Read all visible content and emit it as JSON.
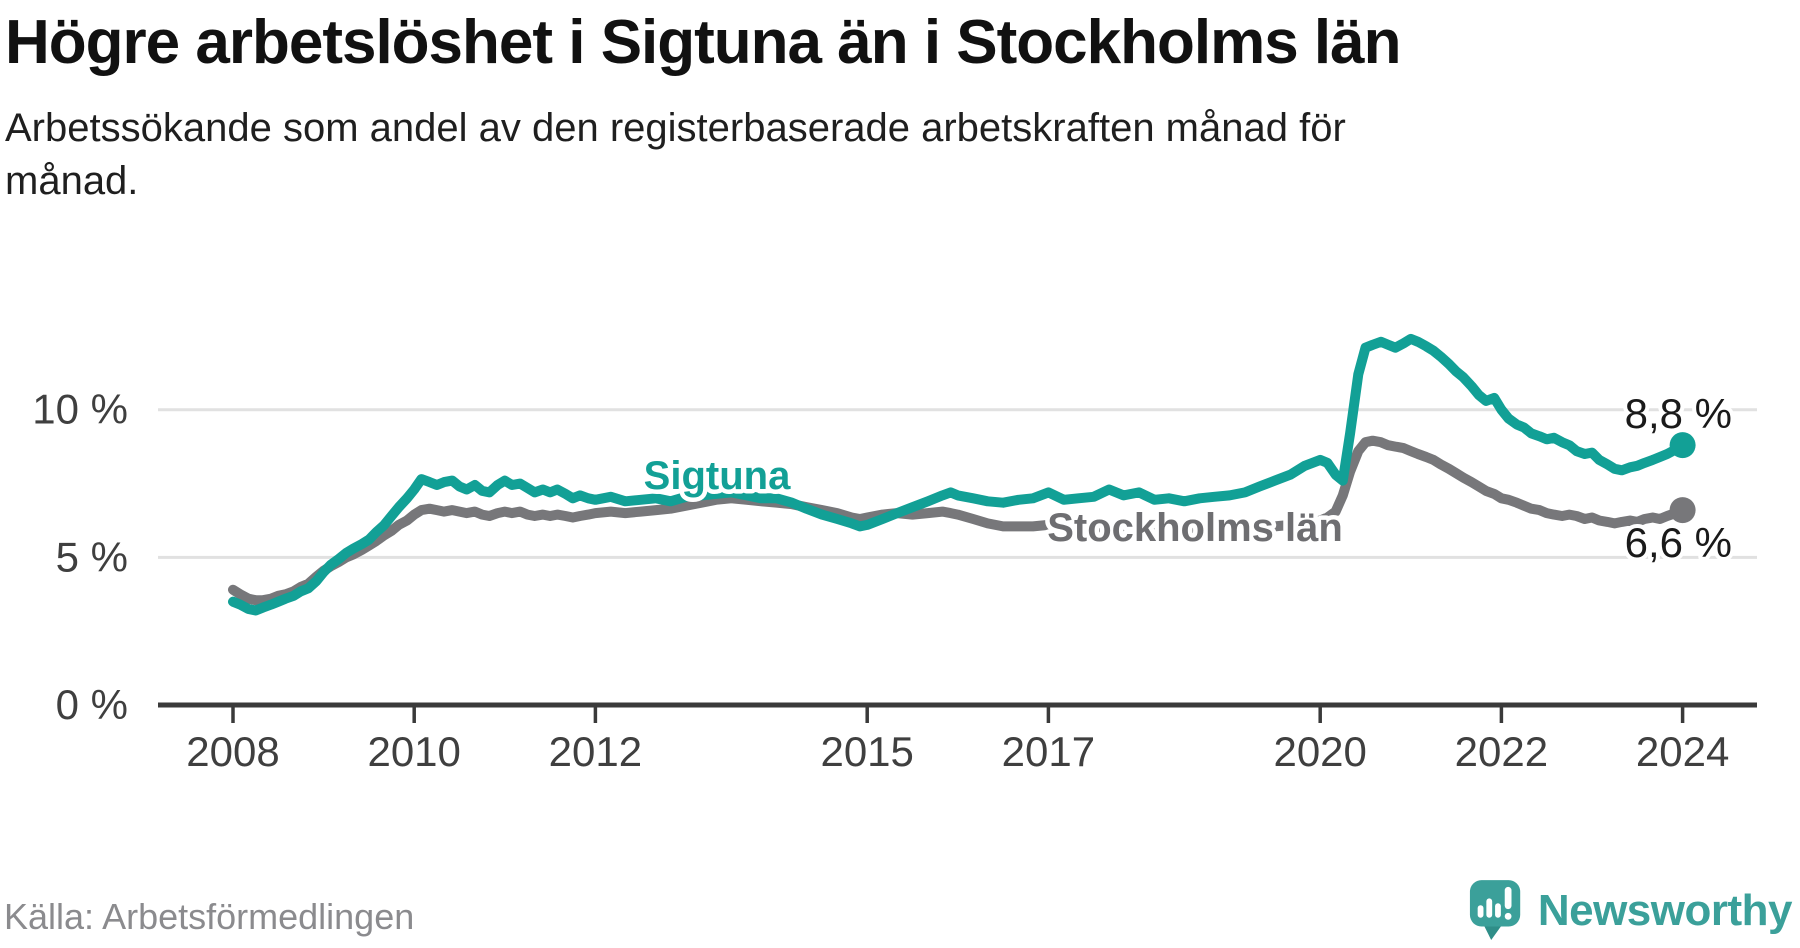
{
  "header": {
    "title": "Högre arbetslöshet i Sigtuna än i Stockholms län",
    "subtitle": "Arbetssökande som andel av den registerbaserade arbetskraften månad för månad."
  },
  "footer": {
    "source": "Källa: Arbetsförmedlingen",
    "logo_text": "Newsworthy",
    "logo_icon": "speech-bubble-bar-chart-exclamation"
  },
  "colors": {
    "sigtuna_line": "#12a096",
    "stockholm_line": "#77777a",
    "stockholm_label": "#6e6e71",
    "axis": "#3a3a3a",
    "grid": "#e1e1e1",
    "tick_text": "#3f3f3f",
    "value_text": "#1a1a1a",
    "muted_text": "#8b8b8e",
    "logo_teal": "#3ba09a"
  },
  "chart_data": {
    "type": "line",
    "xlabel": "",
    "ylabel": "",
    "x_range": [
      2008,
      2024.1
    ],
    "ylim": [
      0,
      13.5
    ],
    "grid": "horizontal",
    "legend_position": "inline-labels",
    "y_ticks": [
      {
        "label": "0 %",
        "value": 0
      },
      {
        "label": "5 %",
        "value": 5
      },
      {
        "label": "10 %",
        "value": 10
      }
    ],
    "x_ticks": [
      {
        "label": "2008",
        "year": 2008
      },
      {
        "label": "2010",
        "year": 2010
      },
      {
        "label": "2012",
        "year": 2012
      },
      {
        "label": "2015",
        "year": 2015
      },
      {
        "label": "2017",
        "year": 2017
      },
      {
        "label": "2020",
        "year": 2020
      },
      {
        "label": "2022",
        "year": 2022
      },
      {
        "label": "2024",
        "year": 2024
      }
    ],
    "series": [
      {
        "name": "Sigtuna",
        "end_label": "8,8 %",
        "end_value": 8.8,
        "color": "#12a096"
      },
      {
        "name": "Stockholms län",
        "end_label": "6,6 %",
        "end_value": 6.6,
        "color": "#77777a"
      }
    ],
    "points_format": [
      "year_decimal",
      "sigtuna_pct",
      "stockholms_lan_pct"
    ],
    "points": [
      [
        2008.0,
        3.5,
        3.9
      ],
      [
        2008.08,
        3.4,
        3.75
      ],
      [
        2008.17,
        3.25,
        3.6
      ],
      [
        2008.25,
        3.2,
        3.55
      ],
      [
        2008.33,
        3.3,
        3.55
      ],
      [
        2008.42,
        3.4,
        3.6
      ],
      [
        2008.5,
        3.5,
        3.7
      ],
      [
        2008.58,
        3.6,
        3.75
      ],
      [
        2008.67,
        3.7,
        3.85
      ],
      [
        2008.75,
        3.85,
        4.0
      ],
      [
        2008.83,
        3.95,
        4.1
      ],
      [
        2008.92,
        4.2,
        4.35
      ],
      [
        2009.0,
        4.5,
        4.55
      ],
      [
        2009.08,
        4.75,
        4.7
      ],
      [
        2009.17,
        4.95,
        4.85
      ],
      [
        2009.25,
        5.15,
        5.0
      ],
      [
        2009.33,
        5.3,
        5.1
      ],
      [
        2009.42,
        5.45,
        5.25
      ],
      [
        2009.5,
        5.6,
        5.4
      ],
      [
        2009.58,
        5.85,
        5.55
      ],
      [
        2009.67,
        6.1,
        5.75
      ],
      [
        2009.75,
        6.4,
        5.9
      ],
      [
        2009.83,
        6.7,
        6.1
      ],
      [
        2009.92,
        7.0,
        6.25
      ],
      [
        2010.0,
        7.3,
        6.45
      ],
      [
        2010.08,
        7.65,
        6.6
      ],
      [
        2010.17,
        7.55,
        6.65
      ],
      [
        2010.25,
        7.45,
        6.6
      ],
      [
        2010.33,
        7.55,
        6.55
      ],
      [
        2010.42,
        7.6,
        6.6
      ],
      [
        2010.5,
        7.4,
        6.55
      ],
      [
        2010.58,
        7.3,
        6.5
      ],
      [
        2010.67,
        7.45,
        6.55
      ],
      [
        2010.75,
        7.25,
        6.45
      ],
      [
        2010.83,
        7.2,
        6.4
      ],
      [
        2010.92,
        7.45,
        6.5
      ],
      [
        2011.0,
        7.6,
        6.55
      ],
      [
        2011.08,
        7.45,
        6.5
      ],
      [
        2011.17,
        7.5,
        6.55
      ],
      [
        2011.25,
        7.35,
        6.45
      ],
      [
        2011.33,
        7.2,
        6.4
      ],
      [
        2011.42,
        7.3,
        6.45
      ],
      [
        2011.5,
        7.2,
        6.4
      ],
      [
        2011.58,
        7.3,
        6.45
      ],
      [
        2011.67,
        7.15,
        6.4
      ],
      [
        2011.75,
        7.0,
        6.35
      ],
      [
        2011.83,
        7.1,
        6.4
      ],
      [
        2011.92,
        7.0,
        6.45
      ],
      [
        2012.0,
        6.95,
        6.5
      ],
      [
        2012.17,
        7.05,
        6.55
      ],
      [
        2012.33,
        6.9,
        6.5
      ],
      [
        2012.5,
        6.95,
        6.55
      ],
      [
        2012.67,
        7.0,
        6.6
      ],
      [
        2012.83,
        6.9,
        6.65
      ],
      [
        2013.0,
        7.05,
        6.75
      ],
      [
        2013.17,
        7.1,
        6.85
      ],
      [
        2013.33,
        7.15,
        6.95
      ],
      [
        2013.5,
        7.2,
        7.0
      ],
      [
        2013.67,
        7.1,
        6.95
      ],
      [
        2013.83,
        7.0,
        6.9
      ],
      [
        2014.0,
        7.0,
        6.85
      ],
      [
        2014.17,
        6.85,
        6.8
      ],
      [
        2014.33,
        6.65,
        6.7
      ],
      [
        2014.5,
        6.45,
        6.6
      ],
      [
        2014.67,
        6.3,
        6.5
      ],
      [
        2014.83,
        6.15,
        6.35
      ],
      [
        2014.92,
        6.05,
        6.3
      ],
      [
        2015.0,
        6.1,
        6.35
      ],
      [
        2015.17,
        6.3,
        6.45
      ],
      [
        2015.33,
        6.5,
        6.5
      ],
      [
        2015.5,
        6.7,
        6.45
      ],
      [
        2015.67,
        6.9,
        6.5
      ],
      [
        2015.83,
        7.1,
        6.55
      ],
      [
        2015.92,
        7.2,
        6.5
      ],
      [
        2016.0,
        7.1,
        6.45
      ],
      [
        2016.17,
        7.0,
        6.3
      ],
      [
        2016.33,
        6.9,
        6.15
      ],
      [
        2016.5,
        6.85,
        6.05
      ],
      [
        2016.67,
        6.95,
        6.05
      ],
      [
        2016.83,
        7.0,
        6.05
      ],
      [
        2017.0,
        7.2,
        6.1
      ],
      [
        2017.17,
        6.95,
        6.05
      ],
      [
        2017.33,
        7.0,
        6.0
      ],
      [
        2017.5,
        7.05,
        6.0
      ],
      [
        2017.67,
        7.3,
        6.05
      ],
      [
        2017.83,
        7.1,
        6.0
      ],
      [
        2018.0,
        7.2,
        5.95
      ],
      [
        2018.17,
        6.95,
        5.9
      ],
      [
        2018.33,
        7.0,
        5.85
      ],
      [
        2018.5,
        6.9,
        5.85
      ],
      [
        2018.67,
        7.0,
        5.9
      ],
      [
        2018.83,
        7.05,
        5.85
      ],
      [
        2019.0,
        7.1,
        5.9
      ],
      [
        2019.17,
        7.2,
        5.95
      ],
      [
        2019.33,
        7.4,
        6.0
      ],
      [
        2019.5,
        7.6,
        6.05
      ],
      [
        2019.67,
        7.8,
        6.1
      ],
      [
        2019.83,
        8.1,
        6.15
      ],
      [
        2020.0,
        8.3,
        6.25
      ],
      [
        2020.08,
        8.2,
        6.35
      ],
      [
        2020.17,
        7.8,
        6.55
      ],
      [
        2020.25,
        7.6,
        7.1
      ],
      [
        2020.33,
        9.2,
        7.9
      ],
      [
        2020.42,
        11.2,
        8.6
      ],
      [
        2020.5,
        12.1,
        8.9
      ],
      [
        2020.58,
        12.2,
        8.95
      ],
      [
        2020.67,
        12.3,
        8.9
      ],
      [
        2020.75,
        12.2,
        8.8
      ],
      [
        2020.83,
        12.1,
        8.75
      ],
      [
        2020.92,
        12.25,
        8.7
      ],
      [
        2021.0,
        12.4,
        8.6
      ],
      [
        2021.08,
        12.3,
        8.5
      ],
      [
        2021.17,
        12.15,
        8.4
      ],
      [
        2021.25,
        12.0,
        8.3
      ],
      [
        2021.33,
        11.8,
        8.15
      ],
      [
        2021.42,
        11.55,
        8.0
      ],
      [
        2021.5,
        11.3,
        7.85
      ],
      [
        2021.58,
        11.1,
        7.7
      ],
      [
        2021.67,
        10.8,
        7.55
      ],
      [
        2021.75,
        10.5,
        7.4
      ],
      [
        2021.83,
        10.3,
        7.25
      ],
      [
        2021.92,
        10.4,
        7.15
      ],
      [
        2022.0,
        10.0,
        7.0
      ],
      [
        2022.08,
        9.7,
        6.95
      ],
      [
        2022.17,
        9.5,
        6.85
      ],
      [
        2022.25,
        9.4,
        6.75
      ],
      [
        2022.33,
        9.2,
        6.65
      ],
      [
        2022.42,
        9.1,
        6.6
      ],
      [
        2022.5,
        9.0,
        6.5
      ],
      [
        2022.58,
        9.05,
        6.45
      ],
      [
        2022.67,
        8.9,
        6.4
      ],
      [
        2022.75,
        8.8,
        6.45
      ],
      [
        2022.83,
        8.6,
        6.4
      ],
      [
        2022.92,
        8.5,
        6.3
      ],
      [
        2023.0,
        8.55,
        6.35
      ],
      [
        2023.08,
        8.3,
        6.25
      ],
      [
        2023.17,
        8.15,
        6.2
      ],
      [
        2023.25,
        8.0,
        6.15
      ],
      [
        2023.33,
        7.95,
        6.2
      ],
      [
        2023.42,
        8.05,
        6.25
      ],
      [
        2023.5,
        8.1,
        6.2
      ],
      [
        2023.58,
        8.2,
        6.3
      ],
      [
        2023.67,
        8.3,
        6.35
      ],
      [
        2023.75,
        8.4,
        6.3
      ],
      [
        2023.83,
        8.5,
        6.4
      ],
      [
        2023.92,
        8.65,
        6.5
      ],
      [
        2024.0,
        8.8,
        6.6
      ]
    ]
  }
}
